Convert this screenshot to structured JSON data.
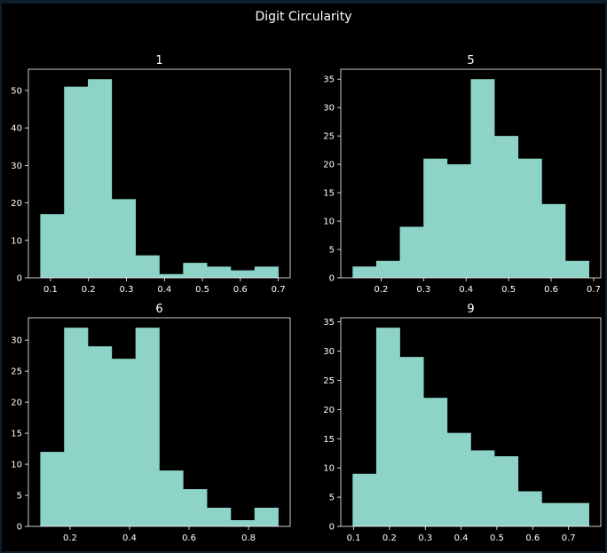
{
  "figure": {
    "title": "Digit Circularity",
    "background": "#000000",
    "bar_color": "#8dd3c7",
    "axis_color": "#ffffff"
  },
  "chart_data": [
    {
      "type": "bar",
      "title": "1",
      "bin_edges": [
        0.073,
        0.1357,
        0.1984,
        0.2611,
        0.3238,
        0.3865,
        0.4492,
        0.5119,
        0.5746,
        0.6373,
        0.7
      ],
      "values": [
        17,
        51,
        53,
        21,
        6,
        1,
        4,
        3,
        2,
        3
      ],
      "xlim": [
        0.0417,
        0.7313
      ],
      "ylim": [
        0,
        55.65
      ],
      "xticks": [
        0.1,
        0.2,
        0.3,
        0.4,
        0.5,
        0.6,
        0.7
      ],
      "xtick_labels": [
        "0.1",
        "0.2",
        "0.3",
        "0.4",
        "0.5",
        "0.6",
        "0.7"
      ],
      "yticks": [
        0,
        10,
        20,
        30,
        40,
        50
      ],
      "ytick_labels": [
        "0",
        "10",
        "20",
        "30",
        "40",
        "50"
      ]
    },
    {
      "type": "bar",
      "title": "5",
      "bin_edges": [
        0.133,
        0.1886,
        0.2442,
        0.2998,
        0.3554,
        0.411,
        0.4666,
        0.5222,
        0.5778,
        0.6334,
        0.689
      ],
      "values": [
        2,
        3,
        9,
        21,
        20,
        35,
        25,
        21,
        13,
        3
      ],
      "xlim": [
        0.1052,
        0.7168
      ],
      "ylim": [
        0,
        36.75
      ],
      "xticks": [
        0.2,
        0.3,
        0.4,
        0.5,
        0.6,
        0.7
      ],
      "xtick_labels": [
        "0.2",
        "0.3",
        "0.4",
        "0.5",
        "0.6",
        "0.7"
      ],
      "yticks": [
        0,
        5,
        10,
        15,
        20,
        25,
        30,
        35
      ],
      "ytick_labels": [
        "0",
        "5",
        "10",
        "15",
        "20",
        "25",
        "30",
        "35"
      ]
    },
    {
      "type": "bar",
      "title": "6",
      "bin_edges": [
        0.1,
        0.18,
        0.26,
        0.34,
        0.42,
        0.5,
        0.58,
        0.66,
        0.74,
        0.82,
        0.9
      ],
      "values": [
        12,
        32,
        29,
        27,
        32,
        9,
        6,
        3,
        1,
        3
      ],
      "xlim": [
        0.06,
        0.94
      ],
      "ylim": [
        0,
        33.6
      ],
      "xticks": [
        0.2,
        0.4,
        0.6,
        0.8
      ],
      "xtick_labels": [
        "0.2",
        "0.4",
        "0.6",
        "0.8"
      ],
      "yticks": [
        0,
        5,
        10,
        15,
        20,
        25,
        30
      ],
      "ytick_labels": [
        "0",
        "5",
        "10",
        "15",
        "20",
        "25",
        "30"
      ]
    },
    {
      "type": "bar",
      "title": "9",
      "bin_edges": [
        0.097,
        0.163,
        0.229,
        0.295,
        0.361,
        0.427,
        0.493,
        0.559,
        0.625,
        0.691,
        0.757
      ],
      "values": [
        9,
        34,
        29,
        22,
        16,
        13,
        12,
        6,
        4,
        4
      ],
      "xlim": [
        0.064,
        0.79
      ],
      "ylim": [
        0,
        35.7
      ],
      "xticks": [
        0.1,
        0.2,
        0.3,
        0.4,
        0.5,
        0.6,
        0.7
      ],
      "xtick_labels": [
        "0.1",
        "0.2",
        "0.3",
        "0.4",
        "0.5",
        "0.6",
        "0.7"
      ],
      "yticks": [
        0,
        5,
        10,
        15,
        20,
        25,
        30,
        35
      ],
      "ytick_labels": [
        "0",
        "5",
        "10",
        "15",
        "20",
        "25",
        "30",
        "35"
      ]
    }
  ]
}
